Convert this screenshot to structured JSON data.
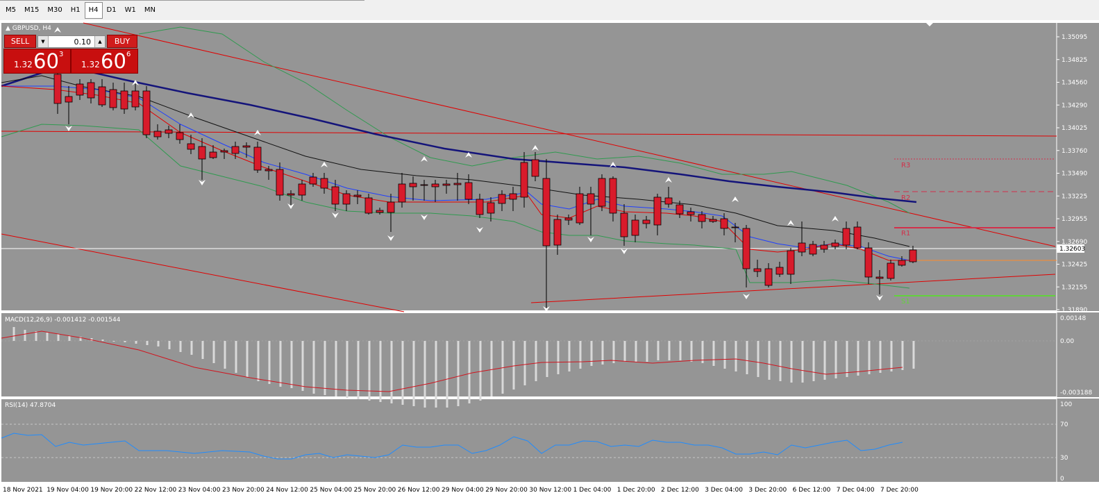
{
  "toolbar": {
    "timeframes": [
      "M5",
      "M15",
      "M30",
      "H1",
      "H4",
      "D1",
      "W1",
      "MN"
    ],
    "active_timeframe": "H4"
  },
  "chart": {
    "symbol_title": "GBPUSD, H4",
    "current_price_label": "1.32603",
    "price_labels": [
      "1.35095",
      "1.34825",
      "1.34560",
      "1.34290",
      "1.34025",
      "1.33760",
      "1.33490",
      "1.33225",
      "1.32955",
      "1.32690",
      "1.32425",
      "1.32155",
      "1.31890"
    ],
    "pivot_labels": [
      "R3",
      "R2",
      "R1",
      "S1"
    ],
    "colors": {
      "background": "#959595",
      "bull": "#0b7a0b",
      "bear": "#d81b2b",
      "ma_slow": "#14147a",
      "ma_mid": "#111111",
      "ma_blue": "#1f3fff",
      "ma_red": "#e10000",
      "bands": "#2f9a4f",
      "pivot": "#d2304a",
      "support": "#62d23c",
      "price_line": "#ffffff",
      "orange": "#ff8a2a"
    }
  },
  "trade_panel": {
    "sell_label": "SELL",
    "buy_label": "BUY",
    "lot_value": "0.10",
    "sell_price": {
      "small": "1.32",
      "big": "60",
      "sup": "3"
    },
    "buy_price": {
      "small": "1.32",
      "big": "60",
      "sup": "6"
    }
  },
  "macd": {
    "title": "MACD(12,26,9) -0.001412 -0.001544",
    "labels": [
      "0.00148",
      "0.00",
      "-0.003188"
    ]
  },
  "rsi": {
    "title": "RSI(14) 47.8704",
    "labels": [
      "100",
      "70",
      "30",
      "0"
    ]
  },
  "time_axis": {
    "labels": [
      "18 Nov 2021",
      "19 Nov 04:00",
      "19 Nov 20:00",
      "22 Nov 12:00",
      "23 Nov 04:00",
      "23 Nov 20:00",
      "24 Nov 12:00",
      "25 Nov 04:00",
      "25 Nov 20:00",
      "26 Nov 12:00",
      "29 Nov 04:00",
      "29 Nov 20:00",
      "30 Nov 12:00",
      "1 Dec 04:00",
      "1 Dec 20:00",
      "2 Dec 12:00",
      "3 Dec 04:00",
      "3 Dec 20:00",
      "6 Dec 12:00",
      "7 Dec 04:00",
      "7 Dec 20:00"
    ]
  }
}
